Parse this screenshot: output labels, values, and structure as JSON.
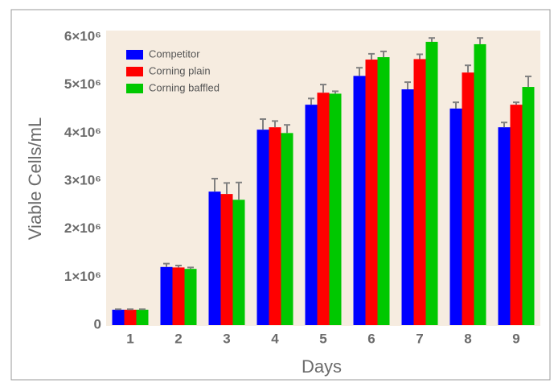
{
  "chart_data": {
    "type": "bar",
    "x_label": "Days",
    "y_label": "Viable Cells/mL",
    "categories": [
      "1",
      "2",
      "3",
      "4",
      "5",
      "6",
      "7",
      "8",
      "9"
    ],
    "series": [
      {
        "name": "Competitor",
        "color": "#0000ff",
        "values": [
          320000,
          1210000,
          2780000,
          4070000,
          4590000,
          5190000,
          4910000,
          4510000,
          4120000
        ],
        "errors": [
          10000,
          70000,
          270000,
          220000,
          130000,
          170000,
          150000,
          130000,
          100000
        ]
      },
      {
        "name": "Corning plain",
        "color": "#ff0000",
        "values": [
          320000,
          1200000,
          2730000,
          4120000,
          4840000,
          5530000,
          5540000,
          5260000,
          4590000
        ],
        "errors": [
          10000,
          40000,
          230000,
          130000,
          170000,
          120000,
          100000,
          150000,
          50000
        ]
      },
      {
        "name": "Corning baffled",
        "color": "#00c800",
        "values": [
          320000,
          1170000,
          2610000,
          4000000,
          4820000,
          5580000,
          5900000,
          5850000,
          4960000
        ],
        "errors": [
          10000,
          30000,
          360000,
          170000,
          50000,
          120000,
          80000,
          130000,
          220000
        ]
      }
    ],
    "ylim": [
      0,
      6000000
    ],
    "yticks": [
      0,
      {
        "value": 1000000,
        "label": "1×10⁶"
      },
      {
        "value": 2000000,
        "label": "2×10⁶"
      },
      {
        "value": 3000000,
        "label": "3×10⁶"
      },
      {
        "value": 4000000,
        "label": "4×10⁶"
      },
      {
        "value": 5000000,
        "label": "5×10⁶"
      },
      {
        "value": 6000000,
        "label": "6×10⁶"
      }
    ],
    "legend": "upper left",
    "error_color": "#808080",
    "background": "#f6ece0"
  }
}
